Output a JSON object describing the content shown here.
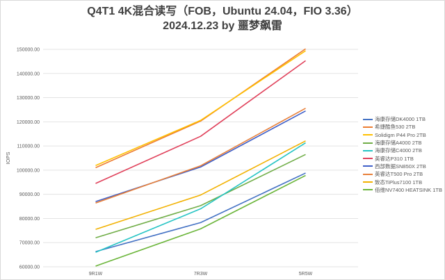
{
  "chart_data": {
    "type": "line",
    "title": "Q4T1 4K混合读写（FOB，Ubuntu 24.04，FIO 3.36）",
    "subtitle": "2024.12.23 by 噩梦飙雷",
    "xlabel": "",
    "ylabel": "IOPS",
    "categories": [
      "9R1W",
      "7R3W",
      "5R5W"
    ],
    "ylim": [
      60000,
      150000
    ],
    "yticks": [
      "60000.00",
      "70000.00",
      "80000.00",
      "90000.00",
      "100000.00",
      "110000.00",
      "120000.00",
      "130000.00",
      "140000.00",
      "150000.00"
    ],
    "grid": true,
    "legend_position": "right",
    "series": [
      {
        "name": "海康存储DK4000 1TB",
        "color": "#4472c4",
        "values": [
          66300,
          78300,
          98800
        ]
      },
      {
        "name": "希捷酷鱼530 2TB",
        "color": "#ed7d31",
        "values": [
          101000,
          120300,
          150200
        ]
      },
      {
        "name": "Solidigm P44 Pro 2TB",
        "color": "#ffc000",
        "values": [
          101900,
          120600,
          149400
        ]
      },
      {
        "name": "海康存储A4000 2TB",
        "color": "#70ad47",
        "values": [
          72000,
          85300,
          106500
        ]
      },
      {
        "name": "海康存储C4000 2TB",
        "color": "#26c4c4",
        "values": [
          66000,
          84000,
          111300
        ]
      },
      {
        "name": "英睿达P310 1TB",
        "color": "#e0405a",
        "values": [
          94500,
          114000,
          145300
        ]
      },
      {
        "name": "西部数据SN850X 2TB",
        "color": "#3f5fc8",
        "values": [
          87000,
          101300,
          124500
        ]
      },
      {
        "name": "英睿达T500 Pro 2TB",
        "color": "#e8803a",
        "values": [
          86400,
          101800,
          125600
        ]
      },
      {
        "name": "致态TiPlus7100 1TB",
        "color": "#f2b100",
        "values": [
          75500,
          89700,
          112100
        ]
      },
      {
        "name": "佰维NV7400 HEATSINK 1TB",
        "color": "#6bb53a",
        "values": [
          60300,
          75700,
          97800
        ]
      }
    ]
  }
}
